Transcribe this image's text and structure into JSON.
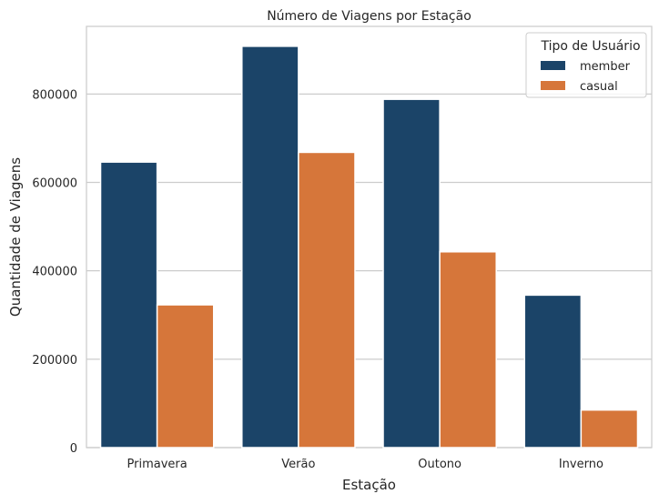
{
  "chart_data": {
    "type": "bar",
    "title": "Número de Viagens por Estação",
    "xlabel": "Estação",
    "ylabel": "Quantidade de Viagens",
    "categories": [
      "Primavera",
      "Verão",
      "Outono",
      "Inverno"
    ],
    "series": [
      {
        "name": "member",
        "color": "#1b4468",
        "values": [
          646000,
          908000,
          788000,
          345000
        ]
      },
      {
        "name": "casual",
        "color": "#d6763a",
        "values": [
          323000,
          668000,
          443000,
          85000
        ]
      }
    ],
    "ylim": [
      0,
      953000
    ],
    "yticks": [
      0,
      200000,
      400000,
      600000,
      800000
    ],
    "ytick_labels": [
      "0",
      "200000",
      "400000",
      "600000",
      "800000"
    ],
    "grid": true,
    "legend": {
      "title": "Tipo de Usuário",
      "placement": "top-right"
    }
  }
}
